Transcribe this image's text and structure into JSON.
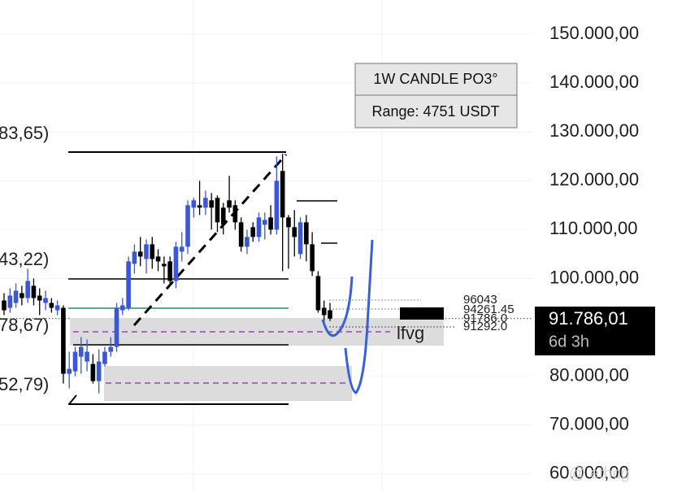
{
  "chart_data": {
    "type": "candlestick",
    "categories": [
      null,
      null,
      null,
      null,
      null,
      null,
      null,
      null,
      null,
      null,
      null,
      null,
      null,
      null,
      null,
      null,
      null,
      null,
      null,
      null,
      null,
      null,
      null,
      null,
      null,
      null,
      null,
      null,
      null,
      null,
      null,
      null,
      null,
      null,
      null,
      null,
      null,
      null,
      null,
      null,
      null,
      null,
      null,
      null,
      null,
      null,
      null,
      null,
      null,
      null,
      null,
      null,
      null,
      null,
      null,
      null
    ],
    "open": [
      95500,
      94000,
      95000,
      97000,
      96000,
      98500,
      96500,
      95000,
      95000,
      93500,
      94000,
      80500,
      81000,
      84000,
      83000,
      82500,
      79000,
      82500,
      85000,
      86000,
      93500,
      94000,
      103000,
      105500,
      104000,
      107000,
      104500,
      103000,
      103500,
      99500,
      105500,
      106500,
      114500,
      115000,
      114500,
      116000,
      116500,
      114500,
      116000,
      115000,
      111500,
      106500,
      110500,
      108500,
      111000,
      112500,
      110000,
      122000,
      112500,
      110500,
      105000,
      111500,
      107000,
      100500,
      94000,
      93500
    ],
    "high": [
      97000,
      98000,
      99000,
      98500,
      102000,
      100000,
      98000,
      97500,
      96000,
      95500,
      94500,
      85000,
      86000,
      88000,
      87500,
      84500,
      85500,
      86000,
      88000,
      95000,
      96000,
      104500,
      107000,
      108500,
      108000,
      108500,
      106000,
      104500,
      104500,
      107500,
      109500,
      116000,
      116500,
      120000,
      118000,
      117500,
      117000,
      115500,
      121000,
      116000,
      112500,
      110000,
      111500,
      113500,
      113500,
      115000,
      125000,
      125500,
      113000,
      114000,
      112500,
      113000,
      109500,
      101500,
      95500,
      95000
    ],
    "low": [
      92500,
      93000,
      94000,
      94500,
      95000,
      94500,
      92500,
      93500,
      93000,
      92500,
      78500,
      77500,
      80000,
      80500,
      81000,
      78500,
      76500,
      82000,
      84000,
      85000,
      92500,
      93500,
      101000,
      102500,
      101000,
      102000,
      101500,
      99000,
      98500,
      98000,
      103500,
      105000,
      112500,
      113000,
      113000,
      110000,
      109500,
      109000,
      113500,
      110000,
      105500,
      105000,
      107500,
      107500,
      108000,
      109000,
      109000,
      101500,
      102000,
      104500,
      104000,
      103500,
      100500,
      93000,
      91000,
      91300
    ],
    "close": [
      93500,
      96500,
      97500,
      96000,
      99500,
      96000,
      95500,
      96000,
      94000,
      94500,
      80500,
      81500,
      85000,
      86000,
      85000,
      79000,
      83000,
      85000,
      86000,
      94000,
      94500,
      103500,
      105500,
      104500,
      107000,
      104000,
      103500,
      102500,
      99500,
      106500,
      106500,
      115000,
      116000,
      114500,
      116500,
      114500,
      111500,
      111000,
      114500,
      111500,
      106500,
      108500,
      108500,
      112500,
      112000,
      110000,
      120000,
      112500,
      110500,
      108500,
      111500,
      107000,
      101500,
      93500,
      92500,
      91786
    ],
    "up_color": "#3b57d4",
    "down_color": "#000000",
    "ylim": [
      56300,
      157000
    ],
    "yticks": [
      {
        "value": 150000,
        "label": "150.000,00"
      },
      {
        "value": 140000,
        "label": "140.000,00"
      },
      {
        "value": 130000,
        "label": "130.000,00"
      },
      {
        "value": 120000,
        "label": "120.000,00"
      },
      {
        "value": 110000,
        "label": "110.000,00"
      },
      {
        "value": 100000,
        "label": "100.000,00"
      },
      {
        "value": 80000,
        "label": "80.000,00"
      },
      {
        "value": 70000,
        "label": "70.000,00"
      },
      {
        "value": 60000,
        "label": "60.000,00"
      }
    ],
    "grid": true,
    "price_label": {
      "value": 91786.01,
      "label": "91.786,01"
    },
    "countdown": "6d 3h",
    "panel": [
      "1W CANDLE PO3°",
      "Range: 4751 USDT"
    ],
    "left_labels": [
      "83,65)",
      "43,22)",
      "78,67)",
      "52,79)"
    ],
    "level_labels": [
      "96043",
      "94261.45",
      "91786.0",
      "91292.0"
    ],
    "zone_label": "lfvg",
    "watermark": "@ ethcg"
  }
}
